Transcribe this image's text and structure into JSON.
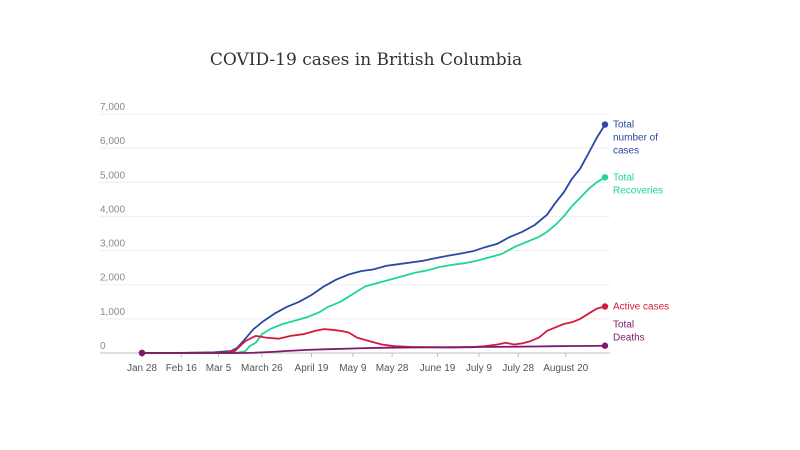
{
  "chart_data": {
    "type": "line",
    "title": "COVID-19 cases in British Columbia",
    "xlabel": "",
    "ylabel": "",
    "ylim": [
      0,
      7000
    ],
    "yticks": [
      0,
      1000,
      2000,
      3000,
      4000,
      5000,
      6000,
      7000
    ],
    "ytick_labels": [
      "0",
      "1,000",
      "2,000",
      "3,000",
      "4,000",
      "5,000",
      "6,000",
      "7,000"
    ],
    "x_dates": [
      "Jan 28",
      "Feb 16",
      "Mar 5",
      "March 26",
      "April 19",
      "May 9",
      "May 28",
      "June 19",
      "July 9",
      "July 28",
      "August 20"
    ],
    "x_ticks": [
      {
        "label": "Jan 28",
        "day": 0
      },
      {
        "label": "Feb 16",
        "day": 19
      },
      {
        "label": "Mar 5",
        "day": 37
      },
      {
        "label": "March 26",
        "day": 58
      },
      {
        "label": "April 19",
        "day": 82
      },
      {
        "label": "May 9",
        "day": 102
      },
      {
        "label": "May 28",
        "day": 121
      },
      {
        "label": "June 19",
        "day": 143
      },
      {
        "label": "July 9",
        "day": 163
      },
      {
        "label": "July 28",
        "day": 182
      },
      {
        "label": "August 20",
        "day": 205
      }
    ],
    "grid": true,
    "series": [
      {
        "name": "Total number of cases",
        "label_lines": [
          "Total",
          "number of",
          "cases"
        ],
        "color": "#2a48a4",
        "points": [
          [
            0,
            0
          ],
          [
            20,
            2
          ],
          [
            35,
            20
          ],
          [
            43,
            60
          ],
          [
            46,
            150
          ],
          [
            49,
            350
          ],
          [
            54,
            700
          ],
          [
            58,
            900
          ],
          [
            64,
            1150
          ],
          [
            70,
            1350
          ],
          [
            76,
            1500
          ],
          [
            82,
            1700
          ],
          [
            88,
            1950
          ],
          [
            94,
            2150
          ],
          [
            100,
            2300
          ],
          [
            106,
            2400
          ],
          [
            112,
            2450
          ],
          [
            118,
            2550
          ],
          [
            124,
            2600
          ],
          [
            130,
            2650
          ],
          [
            136,
            2700
          ],
          [
            142,
            2780
          ],
          [
            148,
            2850
          ],
          [
            154,
            2910
          ],
          [
            160,
            2980
          ],
          [
            166,
            3100
          ],
          [
            172,
            3200
          ],
          [
            178,
            3400
          ],
          [
            184,
            3550
          ],
          [
            190,
            3750
          ],
          [
            196,
            4050
          ],
          [
            200,
            4400
          ],
          [
            204,
            4700
          ],
          [
            208,
            5100
          ],
          [
            212,
            5400
          ],
          [
            216,
            5850
          ],
          [
            220,
            6300
          ],
          [
            224,
            6691
          ]
        ]
      },
      {
        "name": "Total Recoveries",
        "label_lines": [
          "Total",
          "Recoveries"
        ],
        "color": "#1fd693",
        "points": [
          [
            0,
            0
          ],
          [
            45,
            0
          ],
          [
            50,
            50
          ],
          [
            52,
            200
          ],
          [
            55,
            300
          ],
          [
            58,
            550
          ],
          [
            62,
            700
          ],
          [
            68,
            850
          ],
          [
            74,
            950
          ],
          [
            80,
            1050
          ],
          [
            86,
            1200
          ],
          [
            90,
            1350
          ],
          [
            96,
            1500
          ],
          [
            100,
            1650
          ],
          [
            104,
            1800
          ],
          [
            108,
            1950
          ],
          [
            114,
            2050
          ],
          [
            120,
            2150
          ],
          [
            126,
            2250
          ],
          [
            132,
            2350
          ],
          [
            138,
            2420
          ],
          [
            144,
            2520
          ],
          [
            150,
            2580
          ],
          [
            156,
            2630
          ],
          [
            162,
            2700
          ],
          [
            168,
            2800
          ],
          [
            174,
            2900
          ],
          [
            180,
            3100
          ],
          [
            186,
            3250
          ],
          [
            192,
            3400
          ],
          [
            196,
            3550
          ],
          [
            200,
            3750
          ],
          [
            204,
            4000
          ],
          [
            208,
            4300
          ],
          [
            212,
            4550
          ],
          [
            216,
            4800
          ],
          [
            220,
            5000
          ],
          [
            224,
            5146
          ]
        ]
      },
      {
        "name": "Active cases",
        "label_lines": [
          "Active cases"
        ],
        "color": "#d41a3f",
        "points": [
          [
            0,
            0
          ],
          [
            40,
            10
          ],
          [
            45,
            60
          ],
          [
            50,
            350
          ],
          [
            55,
            500
          ],
          [
            60,
            450
          ],
          [
            66,
            420
          ],
          [
            72,
            500
          ],
          [
            78,
            550
          ],
          [
            84,
            650
          ],
          [
            88,
            700
          ],
          [
            92,
            680
          ],
          [
            96,
            650
          ],
          [
            100,
            600
          ],
          [
            104,
            450
          ],
          [
            110,
            350
          ],
          [
            116,
            250
          ],
          [
            122,
            200
          ],
          [
            130,
            180
          ],
          [
            140,
            170
          ],
          [
            150,
            160
          ],
          [
            160,
            170
          ],
          [
            166,
            200
          ],
          [
            172,
            250
          ],
          [
            176,
            300
          ],
          [
            180,
            250
          ],
          [
            184,
            280
          ],
          [
            188,
            350
          ],
          [
            192,
            450
          ],
          [
            196,
            650
          ],
          [
            200,
            750
          ],
          [
            204,
            850
          ],
          [
            208,
            900
          ],
          [
            212,
            1000
          ],
          [
            216,
            1150
          ],
          [
            220,
            1300
          ],
          [
            224,
            1362
          ]
        ]
      },
      {
        "name": "Total Deaths",
        "label_lines": [
          "Total",
          "Deaths"
        ],
        "color": "#7e1a6b",
        "points": [
          [
            0,
            0
          ],
          [
            50,
            0
          ],
          [
            55,
            10
          ],
          [
            62,
            30
          ],
          [
            70,
            60
          ],
          [
            80,
            90
          ],
          [
            90,
            110
          ],
          [
            100,
            130
          ],
          [
            110,
            145
          ],
          [
            120,
            155
          ],
          [
            130,
            160
          ],
          [
            140,
            165
          ],
          [
            150,
            170
          ],
          [
            160,
            175
          ],
          [
            170,
            180
          ],
          [
            180,
            185
          ],
          [
            190,
            190
          ],
          [
            200,
            200
          ],
          [
            210,
            205
          ],
          [
            220,
            208
          ],
          [
            224,
            213
          ]
        ]
      }
    ]
  }
}
